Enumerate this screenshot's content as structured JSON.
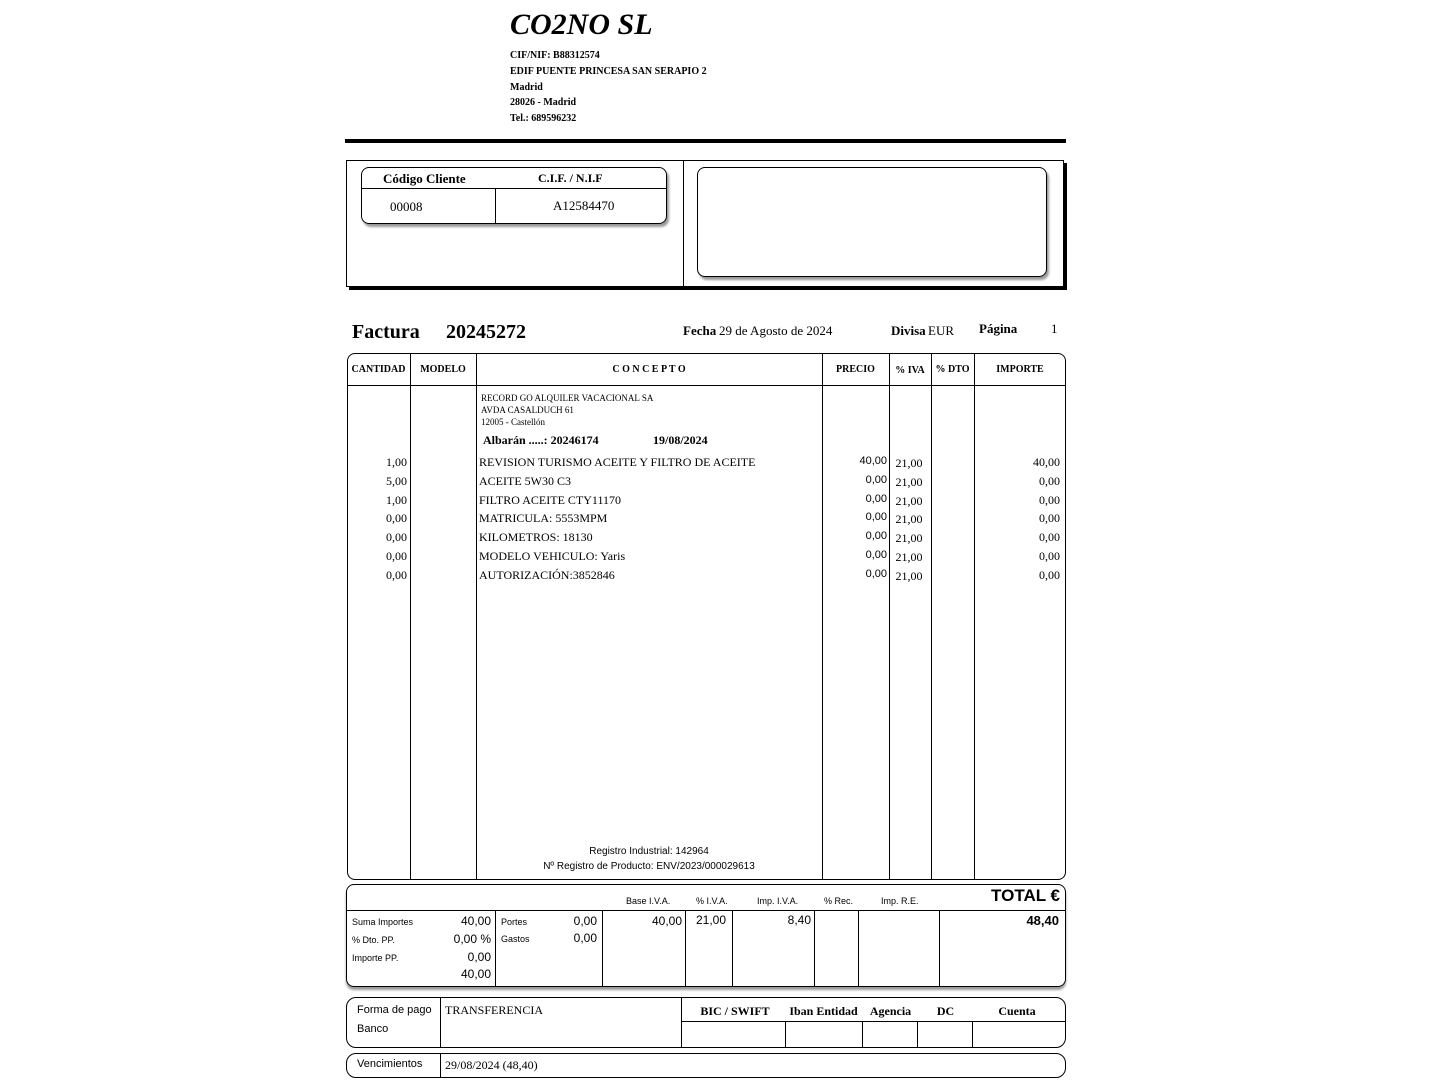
{
  "company": {
    "name": "CO2NO SL",
    "lines": [
      "CIF/NIF: B88312574",
      "EDIF PUENTE PRINCESA SAN SERAPIO 2",
      "Madrid",
      "28026 - Madrid",
      "Tel.: 689596232"
    ]
  },
  "client": {
    "code_label": "Código Cliente",
    "cif_label": "C.I.F. / N.I.F",
    "code": "00008",
    "cif": "A12584470"
  },
  "invoice": {
    "label": "Factura",
    "number": "20245272",
    "date_label": "Fecha",
    "date": "29 de Agosto de 2024",
    "currency_label": "Divisa",
    "currency": "EUR",
    "page_label": "Página",
    "page": "1"
  },
  "table": {
    "headers": [
      "CANTIDAD",
      "MODELO",
      "C O N C E P T O",
      "PRECIO",
      "% IVA",
      "% DTO",
      "IMPORTE"
    ],
    "recipient": [
      "RECORD GO ALQUILER VACACIONAL SA",
      "AVDA CASALDUCH 61",
      "12005 - Castellón"
    ],
    "albaran": "Albarán .....: 20246174",
    "albaran_date": "19/08/2024",
    "rows": [
      {
        "qty": "1,00",
        "concept": "REVISION TURISMO ACEITE Y FILTRO DE ACEITE",
        "price": "40,00",
        "iva": "21,00",
        "amount": "40,00"
      },
      {
        "qty": "5,00",
        "concept": "ACEITE 5W30  C3",
        "price": "0,00",
        "iva": "21,00",
        "amount": "0,00"
      },
      {
        "qty": "1,00",
        "concept": "FILTRO ACEITE CTY11170",
        "price": "0,00",
        "iva": "21,00",
        "amount": "0,00"
      },
      {
        "qty": "0,00",
        "concept": "MATRICULA: 5553MPM",
        "price": "0,00",
        "iva": "21,00",
        "amount": "0,00"
      },
      {
        "qty": "0,00",
        "concept": "KILOMETROS: 18130",
        "price": "0,00",
        "iva": "21,00",
        "amount": "0,00"
      },
      {
        "qty": "0,00",
        "concept": "MODELO VEHICULO: Yaris",
        "price": "0,00",
        "iva": "21,00",
        "amount": "0,00"
      },
      {
        "qty": "0,00",
        "concept": "AUTORIZACIÓN:3852846",
        "price": "0,00",
        "iva": "21,00",
        "amount": "0,00"
      }
    ],
    "footer": [
      "Registro Industrial: 142964",
      "Nº Registro de Producto: ENV/2023/000029613"
    ]
  },
  "totals": {
    "headers": {
      "base": "Base I.V.A.",
      "iva": "% I.V.A.",
      "imp_iva": "Imp. I.V.A.",
      "rec": "% Rec.",
      "imp_re": "Imp. R.E.",
      "total": "TOTAL €"
    },
    "suma_label": "Suma Importes",
    "suma": "40,00",
    "dto_label": "% Dto. PP.",
    "dto": "0,00  %",
    "imp_pp_label": "Importe PP.",
    "imp_pp": "0,00",
    "subtotal": "40,00",
    "portes_label": "Portes",
    "portes": "0,00",
    "gastos_label": "Gastos",
    "gastos": "0,00",
    "base": "40,00",
    "iva": "21,00",
    "imp_iva": "8,40",
    "total": "48,40"
  },
  "payment": {
    "forma_label": "Forma de pago",
    "forma": "TRANSFERENCIA",
    "banco_label": "Banco",
    "bank_headers": [
      "BIC / SWIFT",
      "Iban Entidad",
      "Agencia",
      "DC",
      "Cuenta"
    ],
    "venc_label": "Vencimientos",
    "venc": "29/08/2024 (48,40)"
  }
}
